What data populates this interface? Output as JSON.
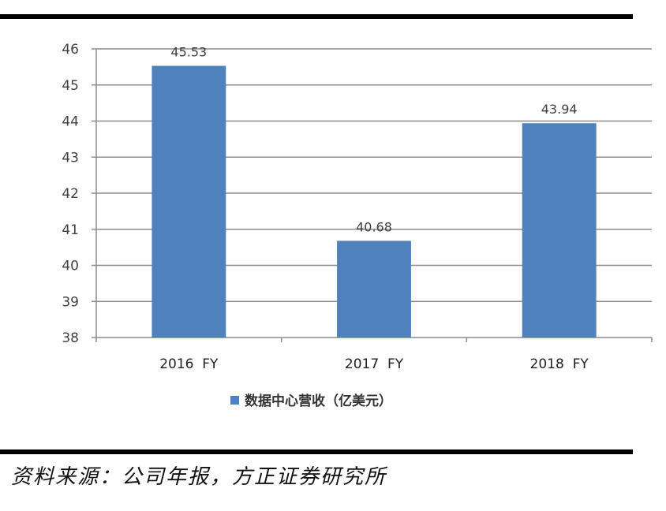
{
  "chart_data": {
    "type": "bar",
    "categories": [
      "2016  FY",
      "2017  FY",
      "2018  FY"
    ],
    "series": [
      {
        "name": "数据中心营收（亿美元）",
        "values": [
          45.53,
          40.68,
          43.94
        ],
        "color": "#4f81bd"
      }
    ],
    "data_labels": [
      "45.53",
      "40.68",
      "43.94"
    ],
    "ylim": [
      38,
      46
    ],
    "yticks": [
      38,
      39,
      40,
      41,
      42,
      43,
      44,
      45,
      46
    ],
    "grid": true,
    "legend_position": "bottom"
  },
  "source_note": "资料来源：公司年报，方正证券研究所"
}
